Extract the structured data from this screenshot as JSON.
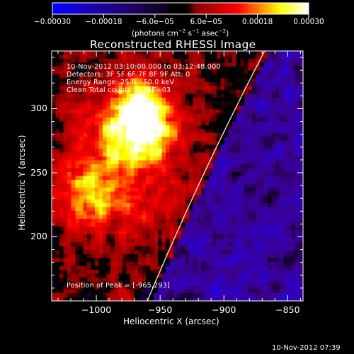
{
  "chart_data": {
    "type": "heatmap",
    "title": "Reconstructed RHESSI Image",
    "xlabel": "Heliocentric X (arcsec)",
    "ylabel": "Heliocentric Y (arcsec)",
    "xlim": [
      -1035,
      -838
    ],
    "ylim": [
      150,
      345
    ],
    "xticks": [
      -1000,
      -950,
      -900,
      -850
    ],
    "yticks": [
      200,
      250,
      300
    ],
    "xtick_labels": [
      "−1000",
      "−950",
      "−900",
      "−850"
    ],
    "ytick_labels": [
      "200",
      "250",
      "300"
    ],
    "colorbar": {
      "range": [
        -0.0003,
        0.0003
      ],
      "ticks": [
        -0.0003,
        -0.00018,
        -6e-05,
        6e-05,
        0.00018,
        0.0003
      ],
      "tick_labels": [
        "−0.00030",
        "−0.00018",
        "−6.0e−05",
        "6.0e−05",
        "0.00018",
        "0.00030"
      ],
      "label_main": "(photons cm",
      "label_exp1": "−2",
      "label_mid": " s",
      "label_exp2": "−1",
      "label_mid2": " asec",
      "label_exp3": "−2",
      "label_end": ")",
      "colormap": [
        "#0000ff",
        "#000000",
        "#ff0000",
        "#ffff00",
        "#ffffff"
      ]
    },
    "limb": "solar limb arc",
    "peak": {
      "x": -965,
      "y": 293
    }
  },
  "annotations": {
    "line1": "10-Nov-2012 03:10:00.000 to 03:12:48.000",
    "line2": "Detectors: 3F 5F 6F 7F 8F 9F  Att: 0",
    "line3": "Energy Range: 25.0 - 50.0 keV",
    "line4": "Clean     Total counts: 3.34E+03",
    "peak_text": "Position of Peak = [-965,293]"
  },
  "footer_timestamp": "10-Nov-2012 07:39"
}
